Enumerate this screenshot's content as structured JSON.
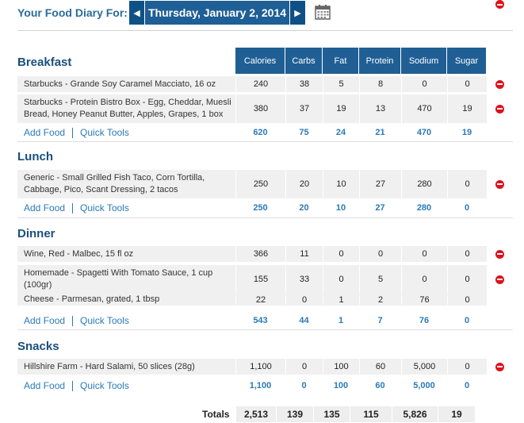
{
  "header": {
    "label": "Your Food Diary For:",
    "date": "Thursday, January 2, 2014"
  },
  "columns": [
    "Calories",
    "Carbs",
    "Fat",
    "Protein",
    "Sodium",
    "Sugar"
  ],
  "links": {
    "add_food": "Add Food",
    "quick_tools": "Quick Tools"
  },
  "meals": [
    {
      "name": "Breakfast",
      "foods": [
        {
          "desc": "Starbucks - Grande Soy Caramel Macciato, 16 oz",
          "values": [
            "240",
            "38",
            "5",
            "8",
            "0",
            "0"
          ]
        },
        {
          "desc": "Starbucks - Protein Bistro Box - Egg, Cheddar, Muesli Bread, Honey Peanut Butter, Apples, Grapes, 1 box",
          "values": [
            "380",
            "37",
            "19",
            "13",
            "470",
            "19"
          ]
        }
      ],
      "totals": [
        "620",
        "75",
        "24",
        "21",
        "470",
        "19"
      ]
    },
    {
      "name": "Lunch",
      "foods": [
        {
          "desc": "Generic - Small Grilled Fish Taco, Corn Tortilla, Cabbage, Pico, Scant Dressing, 2 tacos",
          "values": [
            "250",
            "20",
            "10",
            "27",
            "280",
            "0"
          ]
        }
      ],
      "totals": [
        "250",
        "20",
        "10",
        "27",
        "280",
        "0"
      ]
    },
    {
      "name": "Dinner",
      "foods": [
        {
          "desc": "Wine, Red - Malbec, 15 fl oz",
          "values": [
            "366",
            "11",
            "0",
            "0",
            "0",
            "0"
          ]
        },
        {
          "desc": "Homemade - Spagetti With Tomato Sauce, 1 cup (100gr)",
          "values": [
            "155",
            "33",
            "0",
            "5",
            "0",
            "0"
          ]
        },
        {
          "desc": "Cheese - Parmesan, grated, 1 tbsp",
          "values": [
            "22",
            "0",
            "1",
            "2",
            "76",
            "0"
          ]
        }
      ],
      "totals": [
        "543",
        "44",
        "1",
        "7",
        "76",
        "0"
      ]
    },
    {
      "name": "Snacks",
      "foods": [
        {
          "desc": "Hillshire Farm - Hard Salami, 50 slices (28g)",
          "values": [
            "1,100",
            "0",
            "100",
            "60",
            "5,000",
            "0"
          ]
        }
      ],
      "totals": [
        "1,100",
        "0",
        "100",
        "60",
        "5,000",
        "0"
      ]
    }
  ],
  "grand_totals": {
    "label": "Totals",
    "values": [
      "2,513",
      "139",
      "135",
      "115",
      "5,826",
      "19"
    ]
  }
}
